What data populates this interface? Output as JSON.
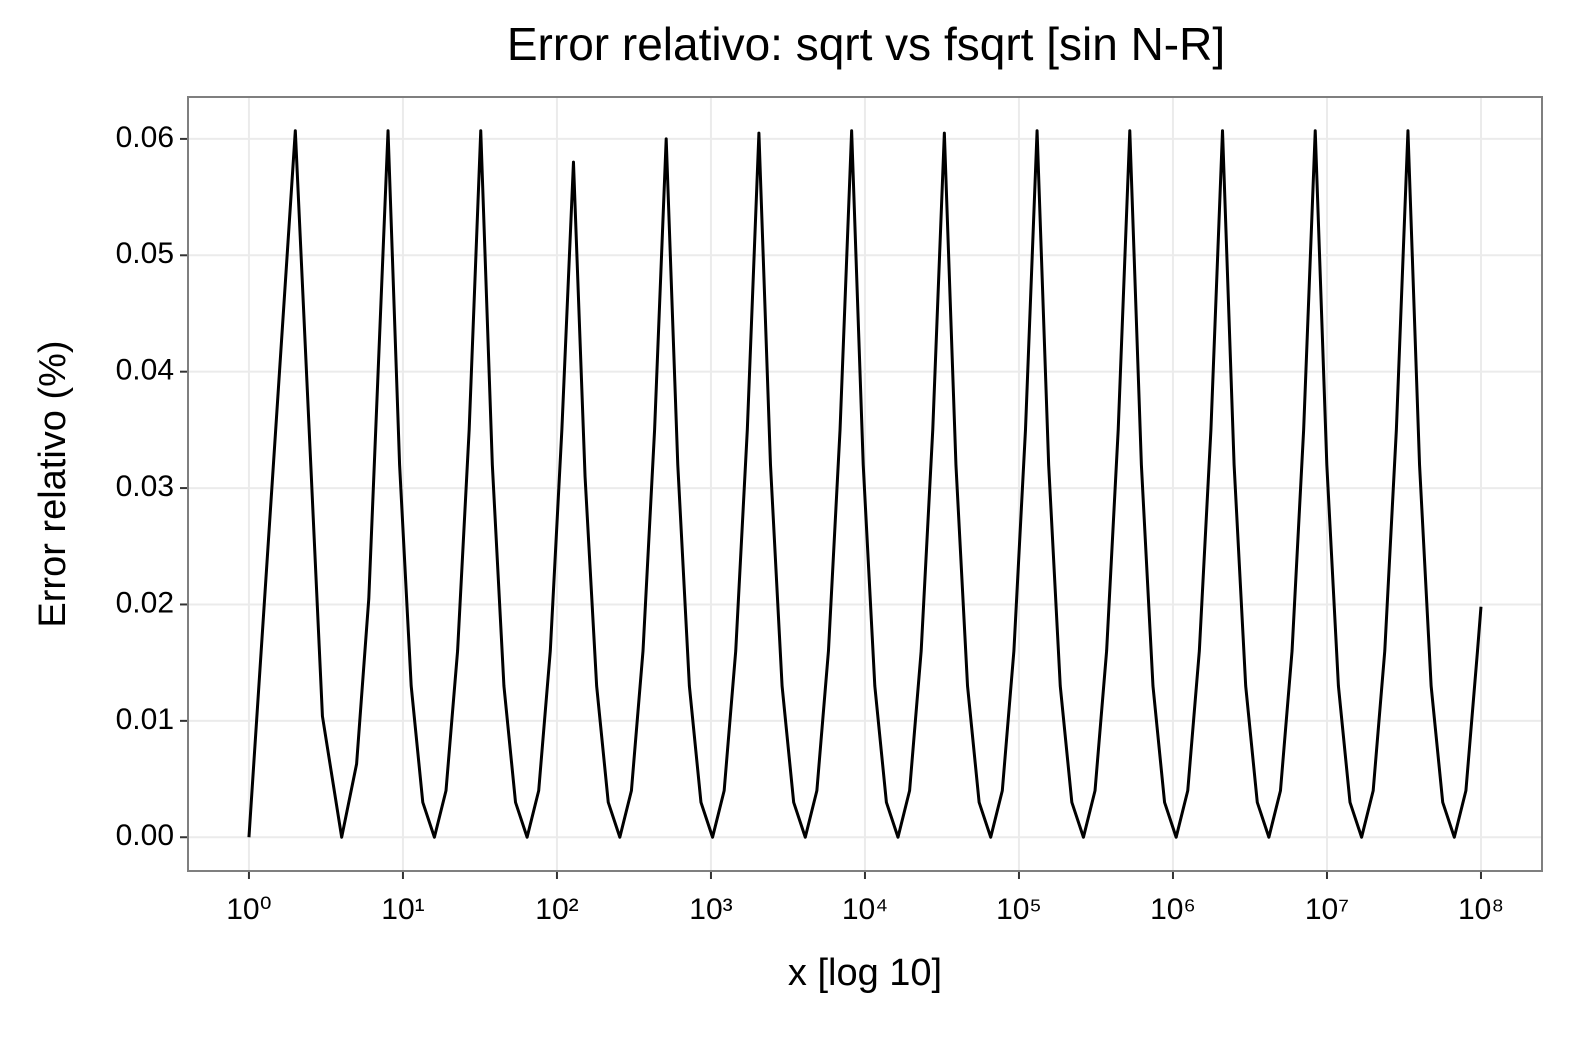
{
  "chart_data": {
    "type": "line",
    "title": "Error relativo: sqrt vs fsqrt [sin N-R]",
    "x_label": "x [log 10]",
    "y_label": "Error relativo (%)",
    "x_log": true,
    "grid": true,
    "xlim": [
      0.402,
      249000000
    ],
    "ylim": [
      -0.0029,
      0.0636
    ],
    "xticks": [
      {
        "value": 1,
        "label": "10⁰"
      },
      {
        "value": 10,
        "label": "10¹"
      },
      {
        "value": 100,
        "label": "10²"
      },
      {
        "value": 1000,
        "label": "10³"
      },
      {
        "value": 10000,
        "label": "10⁴"
      },
      {
        "value": 100000,
        "label": "10⁵"
      },
      {
        "value": 1000000,
        "label": "10⁶"
      },
      {
        "value": 10000000,
        "label": "10⁷"
      },
      {
        "value": 100000000,
        "label": "10⁸"
      }
    ],
    "yticks": [
      {
        "value": 0,
        "label": "0.00"
      },
      {
        "value": 0.01,
        "label": "0.01"
      },
      {
        "value": 0.02,
        "label": "0.02"
      },
      {
        "value": 0.03,
        "label": "0.03"
      },
      {
        "value": 0.04,
        "label": "0.04"
      },
      {
        "value": 0.05,
        "label": "0.05"
      },
      {
        "value": 0.06,
        "label": "0.06"
      }
    ],
    "x": [
      1,
      2,
      3,
      4,
      5,
      6,
      8,
      9.51,
      11.31,
      13.45,
      16,
      19.03,
      22.63,
      26.91,
      32,
      38.05,
      45.25,
      53.82,
      64,
      76.1,
      90.51,
      107.6,
      128,
      152.2,
      181,
      215.3,
      256,
      304.4,
      362,
      430.5,
      512,
      608.9,
      724.1,
      861.1,
      1024,
      1218,
      1448,
      1722,
      2048,
      2435,
      2896,
      3444,
      4096,
      4871,
      5793,
      6889,
      8192,
      9742,
      11585,
      13777,
      16384,
      19484,
      23170,
      27554,
      32768,
      38968,
      46341,
      55109,
      65536,
      77936,
      92682,
      110218,
      131072,
      155872,
      185364,
      220435,
      262144,
      311744,
      370728,
      440872,
      524288,
      623487,
      741455,
      881744,
      1048576,
      1246974,
      1482910,
      1763488,
      2097152,
      2493948,
      2965821,
      3526975,
      4194304,
      4987896,
      5931642,
      7053950,
      8388608,
      9975792,
      11863283,
      14107900,
      16777216,
      19951584,
      23726566,
      28215801,
      33554432,
      39903168,
      47453133,
      56431603,
      67108864,
      79806336,
      94906266,
      100000000
    ],
    "series": [
      {
        "color": "#000000",
        "values": [
          0,
          0.0607,
          0.0104,
          0,
          0.0063,
          0.0205,
          0.0607,
          0.032,
          0.013,
          0.003,
          0,
          0.004,
          0.016,
          0.035,
          0.0607,
          0.032,
          0.013,
          0.003,
          0,
          0.004,
          0.016,
          0.035,
          0.058,
          0.031,
          0.013,
          0.003,
          0,
          0.004,
          0.016,
          0.035,
          0.06,
          0.032,
          0.013,
          0.003,
          0,
          0.004,
          0.016,
          0.035,
          0.0605,
          0.032,
          0.013,
          0.003,
          0,
          0.004,
          0.016,
          0.035,
          0.0607,
          0.032,
          0.013,
          0.003,
          0,
          0.004,
          0.016,
          0.035,
          0.0605,
          0.032,
          0.013,
          0.003,
          0,
          0.004,
          0.016,
          0.035,
          0.0607,
          0.032,
          0.013,
          0.003,
          0,
          0.004,
          0.016,
          0.035,
          0.0607,
          0.032,
          0.013,
          0.003,
          0,
          0.004,
          0.016,
          0.035,
          0.0607,
          0.032,
          0.013,
          0.003,
          0,
          0.004,
          0.016,
          0.035,
          0.0607,
          0.032,
          0.013,
          0.003,
          0,
          0.004,
          0.016,
          0.035,
          0.0607,
          0.032,
          0.013,
          0.003,
          0,
          0.004,
          0.016,
          0.0198
        ]
      }
    ]
  }
}
